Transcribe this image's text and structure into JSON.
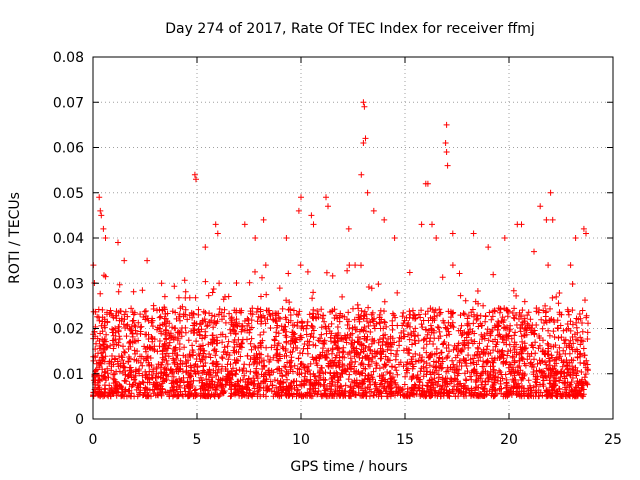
{
  "chart_data": {
    "type": "scatter",
    "title": "Day 274 of 2017, Rate Of TEC Index for receiver ffmj",
    "xlabel": "GPS time / hours",
    "ylabel": "ROTI / TECUs",
    "xlim": [
      0,
      25
    ],
    "ylim": [
      0,
      0.08
    ],
    "xticks": [
      0,
      5,
      10,
      15,
      20,
      25
    ],
    "xtick_labels": [
      "0",
      "5",
      "10",
      "15",
      "20",
      "25"
    ],
    "yticks": [
      0,
      0.01,
      0.02,
      0.03,
      0.04,
      0.05,
      0.06,
      0.07,
      0.08
    ],
    "ytick_labels": [
      "0",
      "0.01",
      "0.02",
      "0.03",
      "0.04",
      "0.05",
      "0.06",
      "0.07",
      "0.08"
    ],
    "grid": true,
    "marker": "plus",
    "color": "#ff0000",
    "series": [
      {
        "name": "ROTI",
        "x_range": [
          0,
          23.8
        ],
        "typical_range": [
          0.005,
          0.03
        ],
        "outliers": [
          [
            0.3,
            0.049
          ],
          [
            0.35,
            0.046
          ],
          [
            0.4,
            0.045
          ],
          [
            0.5,
            0.042
          ],
          [
            0.6,
            0.04
          ],
          [
            1.2,
            0.039
          ],
          [
            1.5,
            0.035
          ],
          [
            2.6,
            0.035
          ],
          [
            3.3,
            0.03
          ],
          [
            4.9,
            0.054
          ],
          [
            4.95,
            0.053
          ],
          [
            5.4,
            0.038
          ],
          [
            5.9,
            0.043
          ],
          [
            6.0,
            0.041
          ],
          [
            7.3,
            0.043
          ],
          [
            7.8,
            0.04
          ],
          [
            8.2,
            0.044
          ],
          [
            9.3,
            0.04
          ],
          [
            9.9,
            0.046
          ],
          [
            10.0,
            0.049
          ],
          [
            10.5,
            0.045
          ],
          [
            10.6,
            0.043
          ],
          [
            11.2,
            0.049
          ],
          [
            11.3,
            0.047
          ],
          [
            12.3,
            0.042
          ],
          [
            12.9,
            0.054
          ],
          [
            13.0,
            0.07
          ],
          [
            13.05,
            0.069
          ],
          [
            13.1,
            0.062
          ],
          [
            13.0,
            0.061
          ],
          [
            13.2,
            0.05
          ],
          [
            13.5,
            0.046
          ],
          [
            14.0,
            0.044
          ],
          [
            14.5,
            0.04
          ],
          [
            15.8,
            0.043
          ],
          [
            16.0,
            0.052
          ],
          [
            16.1,
            0.052
          ],
          [
            16.3,
            0.043
          ],
          [
            16.5,
            0.04
          ],
          [
            17.0,
            0.065
          ],
          [
            16.95,
            0.061
          ],
          [
            17.0,
            0.059
          ],
          [
            17.05,
            0.056
          ],
          [
            17.3,
            0.041
          ],
          [
            18.3,
            0.041
          ],
          [
            19.0,
            0.038
          ],
          [
            19.8,
            0.04
          ],
          [
            20.4,
            0.043
          ],
          [
            20.6,
            0.043
          ],
          [
            21.2,
            0.037
          ],
          [
            21.5,
            0.047
          ],
          [
            21.8,
            0.044
          ],
          [
            22.0,
            0.05
          ],
          [
            22.1,
            0.044
          ],
          [
            23.2,
            0.04
          ],
          [
            23.6,
            0.042
          ],
          [
            23.7,
            0.041
          ]
        ]
      }
    ]
  }
}
